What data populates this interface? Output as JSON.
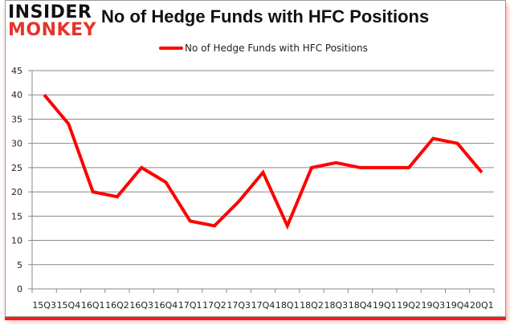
{
  "logo": {
    "line1": "INSIDER",
    "line2": "MONKEY"
  },
  "chart_data": {
    "type": "line",
    "title": "No of Hedge Funds with HFC Positions",
    "xlabel": "",
    "ylabel": "",
    "categories": [
      "15Q3",
      "15Q4",
      "16Q1",
      "16Q2",
      "16Q3",
      "16Q4",
      "17Q1",
      "17Q2",
      "17Q3",
      "17Q4",
      "18Q1",
      "18Q2",
      "18Q3",
      "18Q4",
      "19Q1",
      "19Q2",
      "19Q3",
      "19Q4",
      "20Q1"
    ],
    "series": [
      {
        "name": "No of Hedge Funds with HFC Positions",
        "color": "#ff0000",
        "values": [
          40,
          34,
          20,
          19,
          25,
          22,
          14,
          13,
          18,
          24,
          13,
          25,
          26,
          25,
          25,
          25,
          31,
          30,
          24
        ]
      }
    ],
    "ylim": [
      0,
      45
    ],
    "yticks": [
      0,
      5,
      10,
      15,
      20,
      25,
      30,
      35,
      40,
      45
    ],
    "grid": true,
    "legend_position": "top"
  },
  "colors": {
    "line": "#ff0000",
    "grid": "#888888",
    "logo_red": "#e8332a"
  }
}
